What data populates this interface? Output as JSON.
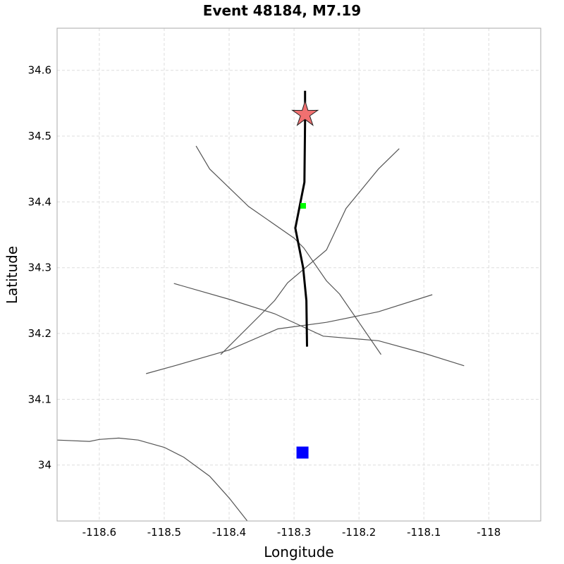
{
  "chart_data": {
    "type": "map",
    "title": "Event 48184, M7.19",
    "xlabel": "Longitude",
    "ylabel": "Latitude",
    "xlim": [
      -118.665,
      -117.92
    ],
    "ylim": [
      33.915,
      34.664
    ],
    "grid": true,
    "x_ticks": [
      -118.6,
      -118.5,
      -118.4,
      -118.3,
      -118.2,
      -118.1,
      -118
    ],
    "x_tick_labels": [
      "-118.6",
      "-118.5",
      "-118.4",
      "-118.3",
      "-118.2",
      "-118.1",
      "-118"
    ],
    "y_ticks": [
      34.0,
      34.1,
      34.2,
      34.3,
      34.4,
      34.5,
      34.6
    ],
    "y_tick_labels": [
      "34",
      "34.1",
      "34.2",
      "34.3",
      "34.4",
      "34.5",
      "34.6"
    ],
    "colors": {
      "background_lines": "#555555",
      "rupture": "#000000",
      "epicenter_fill": "#f07070",
      "station_green": "#00ff00",
      "station_blue": "#0000ff",
      "grid": "#dddddd"
    },
    "rupture_trace": [
      [
        -118.283,
        34.569
      ],
      [
        -118.283,
        34.52
      ],
      [
        -118.284,
        34.43
      ],
      [
        -118.298,
        34.36
      ],
      [
        -118.286,
        34.3
      ],
      [
        -118.281,
        34.25
      ],
      [
        -118.28,
        34.18
      ]
    ],
    "epicenter": {
      "lon": -118.283,
      "lat": 34.533
    },
    "stations": [
      {
        "lon": -118.286,
        "lat": 34.394,
        "color": "#00ff00",
        "size": "small"
      },
      {
        "lon": -118.287,
        "lat": 34.019,
        "color": "#0000ff",
        "size": "large"
      }
    ],
    "lines": [
      [
        [
          -118.451,
          34.485
        ],
        [
          -118.43,
          34.45
        ],
        [
          -118.37,
          34.393
        ],
        [
          -118.3,
          34.345
        ],
        [
          -118.285,
          34.33
        ],
        [
          -118.25,
          34.28
        ],
        [
          -118.23,
          34.26
        ],
        [
          -118.166,
          34.168
        ]
      ],
      [
        [
          -118.138,
          34.481
        ],
        [
          -118.17,
          34.45
        ],
        [
          -118.22,
          34.39
        ],
        [
          -118.25,
          34.327
        ],
        [
          -118.31,
          34.277
        ],
        [
          -118.33,
          34.25
        ],
        [
          -118.35,
          34.23
        ],
        [
          -118.413,
          34.168
        ]
      ],
      [
        [
          -118.485,
          34.276
        ],
        [
          -118.4,
          34.252
        ],
        [
          -118.33,
          34.23
        ],
        [
          -118.255,
          34.196
        ],
        [
          -118.17,
          34.189
        ],
        [
          -118.1,
          34.17
        ],
        [
          -118.038,
          34.151
        ]
      ],
      [
        [
          -118.528,
          34.139
        ],
        [
          -118.48,
          34.152
        ],
        [
          -118.4,
          34.175
        ],
        [
          -118.325,
          34.207
        ],
        [
          -118.25,
          34.217
        ],
        [
          -118.17,
          34.233
        ],
        [
          -118.087,
          34.259
        ]
      ],
      [
        [
          -118.665,
          34.038
        ],
        [
          -118.615,
          34.036
        ],
        [
          -118.6,
          34.039
        ],
        [
          -118.57,
          34.041
        ],
        [
          -118.54,
          34.038
        ],
        [
          -118.5,
          34.027
        ],
        [
          -118.47,
          34.012
        ],
        [
          -118.43,
          33.983
        ],
        [
          -118.4,
          33.95
        ],
        [
          -118.372,
          33.915
        ]
      ]
    ]
  }
}
